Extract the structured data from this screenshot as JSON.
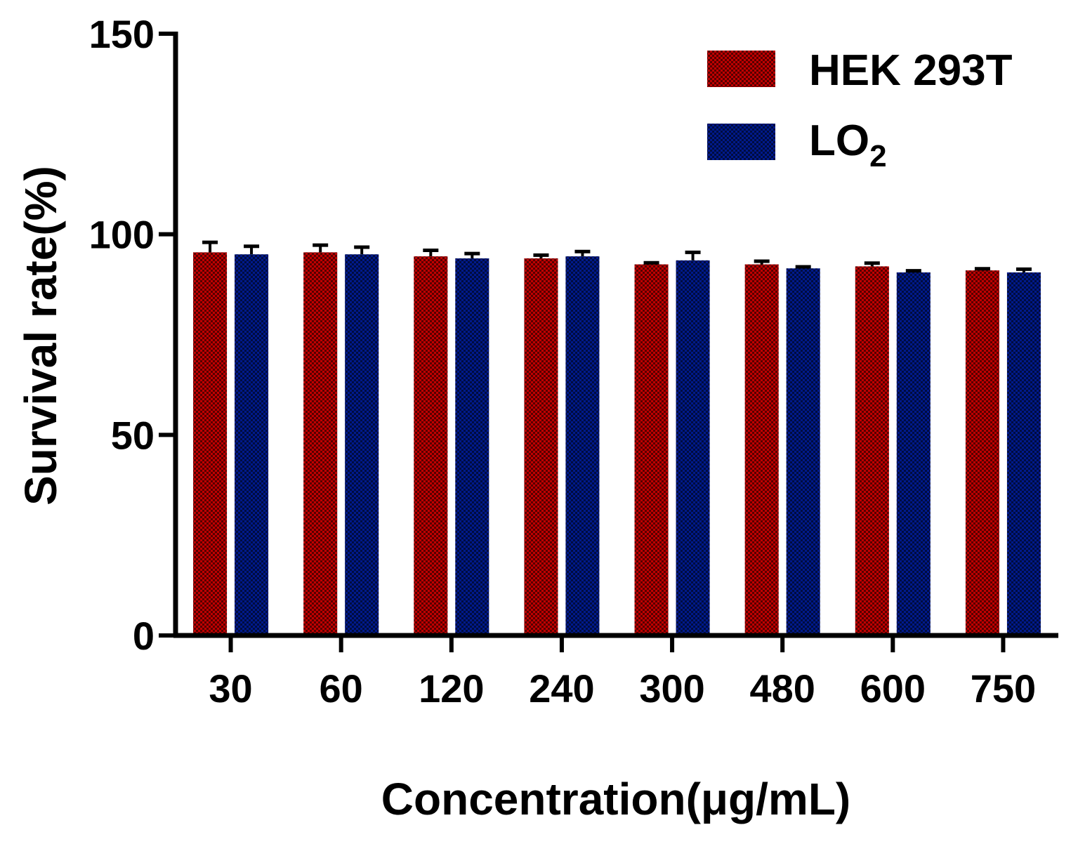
{
  "chart_data": {
    "type": "bar",
    "title": "",
    "xlabel": "Concentration(μg/mL)",
    "ylabel": "Survival rate(%)",
    "ylim": [
      0,
      150
    ],
    "yticks": [
      0,
      50,
      100,
      150
    ],
    "categories": [
      "30",
      "60",
      "120",
      "240",
      "300",
      "480",
      "600",
      "750"
    ],
    "series": [
      {
        "name": "HEK 293T",
        "color": "#c00000",
        "values": [
          95.5,
          95.5,
          94.5,
          94.0,
          92.5,
          92.5,
          92.0,
          91.0
        ],
        "errors": [
          2.5,
          1.8,
          1.5,
          0.8,
          0.4,
          0.8,
          0.8,
          0.4
        ]
      },
      {
        "name": "LO",
        "name_subscript": "2",
        "color": "#001a8c",
        "values": [
          95.0,
          95.0,
          94.0,
          94.5,
          93.5,
          91.5,
          90.5,
          90.5
        ],
        "errors": [
          2.0,
          1.8,
          1.2,
          1.2,
          2.0,
          0.4,
          0.4,
          0.8
        ]
      }
    ],
    "legend_position": "top-right",
    "bar_pattern": "checkered"
  }
}
